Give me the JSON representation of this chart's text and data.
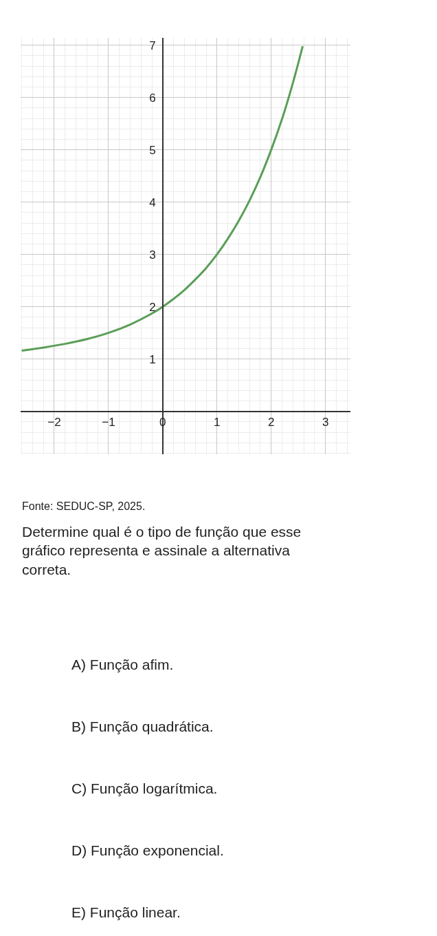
{
  "chart_data": {
    "type": "line",
    "x": [
      -2.6,
      -2.2,
      -1.8,
      -1.4,
      -1,
      -0.6,
      -0.2,
      0,
      0.2,
      0.4,
      0.6,
      0.8,
      1,
      1.2,
      1.4,
      1.6,
      1.8,
      2,
      2.2,
      2.4,
      2.58
    ],
    "series": [
      {
        "color": "#5a9e57",
        "values": [
          1.16,
          1.22,
          1.29,
          1.38,
          1.5,
          1.66,
          1.87,
          2,
          2.15,
          2.32,
          2.52,
          2.74,
          3,
          3.3,
          3.64,
          4.03,
          4.48,
          5,
          5.59,
          6.28,
          6.98
        ]
      }
    ],
    "xlim": [
      -2.62,
      3.46
    ],
    "ylim": [
      -0.82,
      7.14
    ],
    "xticks": [
      -2,
      -1,
      0,
      1,
      2,
      3
    ],
    "yticks": [
      1,
      2,
      3,
      4,
      5,
      6,
      7
    ],
    "grid": true,
    "marker": "none",
    "line_style": "solid",
    "annotations": [
      "Fonte: SEDUC-SP, 2025.",
      "Determine qual é o tipo de função que esse gráfico representa e assinale a alternativa correta.",
      "A) Função afim.",
      "B) Função quadrática.",
      "C) Função logarítmica.",
      "D) Função exponencial.",
      "E) Função linear."
    ]
  }
}
